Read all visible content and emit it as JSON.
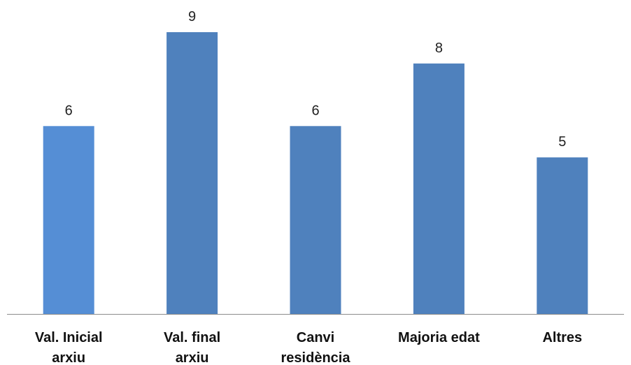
{
  "chart_data": {
    "type": "bar",
    "categories": [
      [
        "Val. Inicial",
        "arxiu"
      ],
      [
        "Val. final",
        "arxiu"
      ],
      [
        "Canvi",
        "residència"
      ],
      [
        "Majoria edat"
      ],
      [
        "Altres"
      ]
    ],
    "values": [
      6,
      9,
      6,
      8,
      5
    ],
    "data_labels": [
      "6",
      "9",
      "6",
      "8",
      "5"
    ],
    "colors": [
      "#558ED5",
      "#4F81BD",
      "#4F81BD",
      "#4F81BD",
      "#4F81BD"
    ],
    "axis_color": "#8C8C8C",
    "title": "",
    "xlabel": "",
    "ylabel": "",
    "ylim": [
      0,
      9
    ],
    "grid": false,
    "legend": "none"
  }
}
